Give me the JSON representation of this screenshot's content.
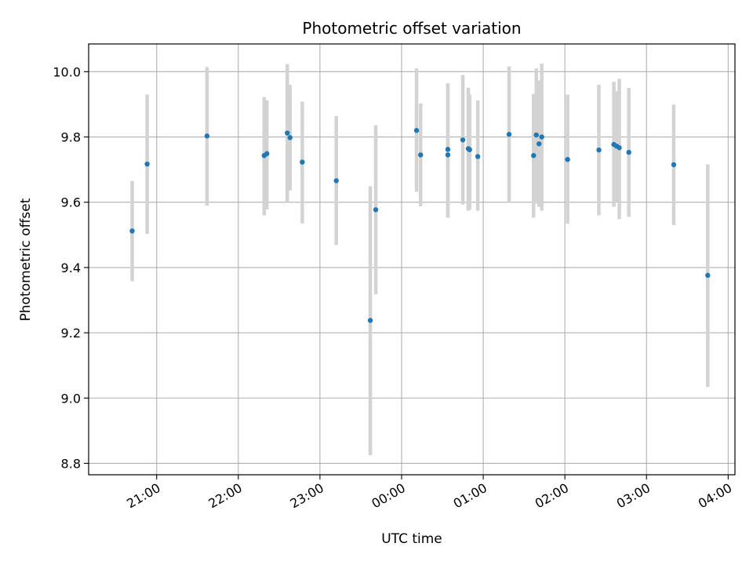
{
  "chart_data": {
    "type": "scatter",
    "title": "Photometric offset variation",
    "xlabel": "UTC time",
    "ylabel": "Photometric offset",
    "x_axis": {
      "kind": "time",
      "start": "20:10",
      "end": "04:05",
      "ticks": [
        "21:00",
        "22:00",
        "23:00",
        "00:00",
        "01:00",
        "02:00",
        "03:00",
        "04:00"
      ]
    },
    "ylim": [
      8.765,
      10.085
    ],
    "y_ticks": [
      8.8,
      9.0,
      9.2,
      9.4,
      9.6,
      9.8,
      10.0
    ],
    "grid": true,
    "colors": {
      "point": "#1f77b4",
      "errorbar": "#d3d3d3",
      "grid": "#b0b0b0"
    },
    "points": [
      {
        "t": "20:42",
        "y": 9.512,
        "lo": 9.358,
        "hi": 9.665
      },
      {
        "t": "20:53",
        "y": 9.717,
        "lo": 9.503,
        "hi": 9.93
      },
      {
        "t": "21:37",
        "y": 9.803,
        "lo": 9.59,
        "hi": 10.014
      },
      {
        "t": "22:19",
        "y": 9.743,
        "lo": 9.56,
        "hi": 9.922
      },
      {
        "t": "22:21",
        "y": 9.749,
        "lo": 9.578,
        "hi": 9.912
      },
      {
        "t": "22:36",
        "y": 9.812,
        "lo": 9.6,
        "hi": 10.023
      },
      {
        "t": "22:38",
        "y": 9.798,
        "lo": 9.636,
        "hi": 9.96
      },
      {
        "t": "22:47",
        "y": 9.723,
        "lo": 9.535,
        "hi": 9.908
      },
      {
        "t": "23:12",
        "y": 9.666,
        "lo": 9.469,
        "hi": 9.864
      },
      {
        "t": "23:37",
        "y": 9.238,
        "lo": 8.825,
        "hi": 9.649
      },
      {
        "t": "23:41",
        "y": 9.577,
        "lo": 9.318,
        "hi": 9.836
      },
      {
        "t": "00:11",
        "y": 9.82,
        "lo": 9.632,
        "hi": 10.01
      },
      {
        "t": "00:14",
        "y": 9.745,
        "lo": 9.588,
        "hi": 9.903
      },
      {
        "t": "00:34",
        "y": 9.762,
        "lo": 9.553,
        "hi": 9.964
      },
      {
        "t": "00:34",
        "y": 9.745,
        "lo": 9.553,
        "hi": 9.964
      },
      {
        "t": "00:45",
        "y": 9.791,
        "lo": 9.593,
        "hi": 9.99
      },
      {
        "t": "00:49",
        "y": 9.764,
        "lo": 9.574,
        "hi": 9.951
      },
      {
        "t": "00:50",
        "y": 9.761,
        "lo": 9.578,
        "hi": 9.93
      },
      {
        "t": "00:56",
        "y": 9.74,
        "lo": 9.574,
        "hi": 9.912
      },
      {
        "t": "01:19",
        "y": 9.808,
        "lo": 9.6,
        "hi": 10.016
      },
      {
        "t": "01:37",
        "y": 9.743,
        "lo": 9.553,
        "hi": 9.932
      },
      {
        "t": "01:39",
        "y": 9.806,
        "lo": 9.596,
        "hi": 10.01
      },
      {
        "t": "01:41",
        "y": 9.779,
        "lo": 9.586,
        "hi": 9.973
      },
      {
        "t": "01:43",
        "y": 9.8,
        "lo": 9.574,
        "hi": 10.025
      },
      {
        "t": "02:02",
        "y": 9.731,
        "lo": 9.534,
        "hi": 9.93
      },
      {
        "t": "02:25",
        "y": 9.76,
        "lo": 9.56,
        "hi": 9.96
      },
      {
        "t": "02:36",
        "y": 9.777,
        "lo": 9.586,
        "hi": 9.969
      },
      {
        "t": "02:38",
        "y": 9.772,
        "lo": 9.6,
        "hi": 9.94
      },
      {
        "t": "02:40",
        "y": 9.767,
        "lo": 9.548,
        "hi": 9.978
      },
      {
        "t": "02:47",
        "y": 9.753,
        "lo": 9.555,
        "hi": 9.95
      },
      {
        "t": "03:20",
        "y": 9.715,
        "lo": 9.53,
        "hi": 9.899
      },
      {
        "t": "03:45",
        "y": 9.376,
        "lo": 9.034,
        "hi": 9.716
      }
    ]
  }
}
